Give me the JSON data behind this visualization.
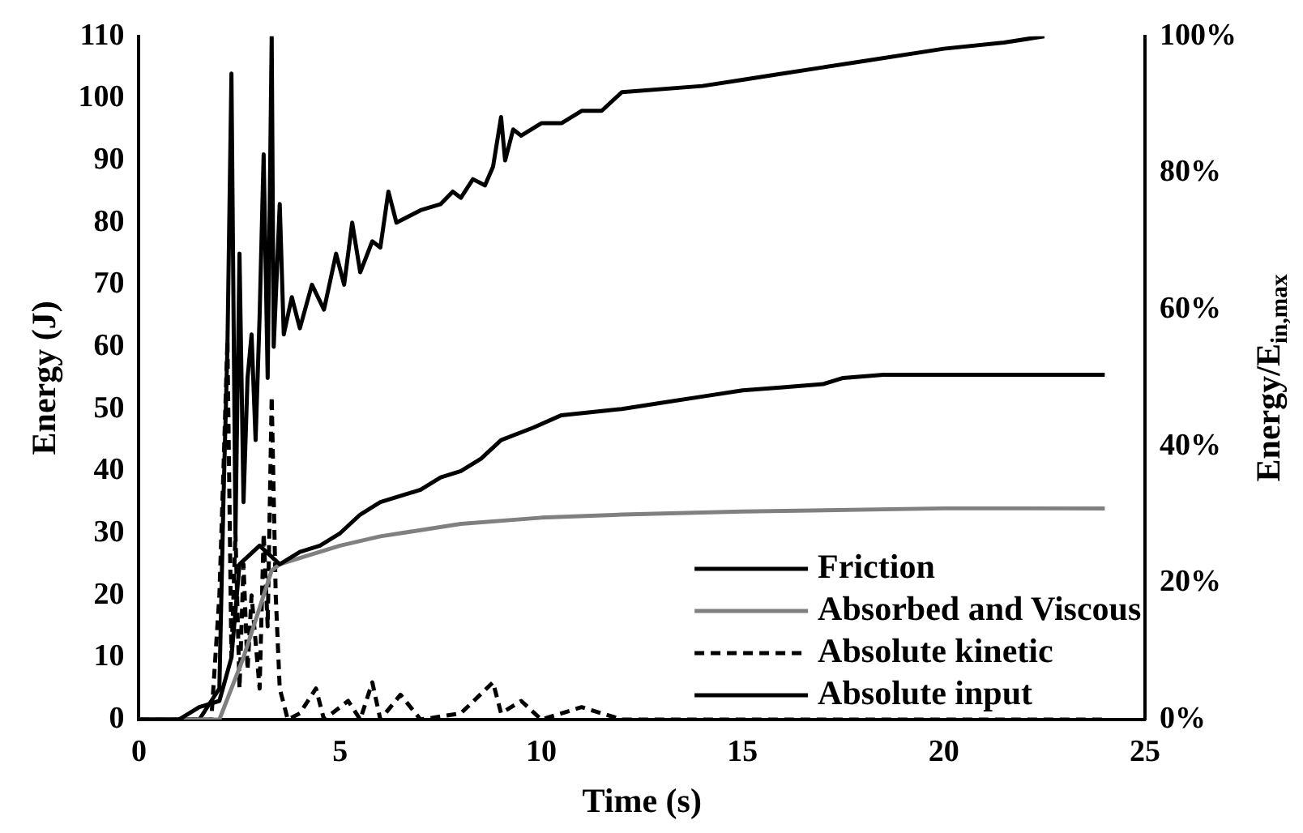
{
  "chart_data": {
    "type": "line",
    "xlabel": "Time (s)",
    "ylabel": "Energy (J)",
    "y2label": "Energy/E$_{in,max}$",
    "xlim": [
      0,
      25
    ],
    "xticks": [
      0,
      5,
      10,
      15,
      20,
      25
    ],
    "ylim": [
      0,
      110
    ],
    "yticks": [
      0,
      10,
      20,
      30,
      40,
      50,
      60,
      70,
      80,
      90,
      100,
      110
    ],
    "y2lim": [
      0,
      100
    ],
    "y2ticks": [
      {
        "value": 0,
        "label": "0%"
      },
      {
        "value": 20,
        "label": "20%"
      },
      {
        "value": 40,
        "label": "40%"
      },
      {
        "value": 60,
        "label": "60%"
      },
      {
        "value": 80,
        "label": "80%"
      },
      {
        "value": 100,
        "label": "100%"
      }
    ],
    "grid": false,
    "legend": "bottom right",
    "marker": "none",
    "series": [
      {
        "name": "Friction",
        "color": "#000000",
        "line_style": "solid",
        "x": [
          0,
          1,
          1.5,
          2,
          2.3,
          2.5,
          3,
          3.5,
          4,
          4.5,
          5,
          5.5,
          6,
          7,
          7.5,
          8,
          8.5,
          9,
          9.8,
          10.5,
          12,
          13,
          14,
          15,
          16,
          17,
          17.5,
          18.5,
          20,
          22,
          24
        ],
        "values": [
          0,
          0,
          2,
          3,
          10,
          25,
          28,
          25,
          27,
          28,
          30,
          33,
          35,
          37,
          39,
          40,
          42,
          45,
          47,
          49,
          50,
          51,
          52,
          53,
          53.5,
          54,
          55,
          55.5,
          55.5,
          55.5,
          55.5
        ]
      },
      {
        "name": "Absorbed and Viscous",
        "color": "#808080",
        "line_style": "solid",
        "x": [
          0,
          2,
          2.3,
          2.6,
          3,
          3.3,
          3.5,
          4,
          5,
          6,
          7,
          8,
          10,
          12,
          15,
          20,
          24
        ],
        "values": [
          0,
          0,
          5,
          10,
          18,
          24,
          25,
          26,
          28,
          29.5,
          30.5,
          31.5,
          32.5,
          33,
          33.5,
          34,
          34
        ]
      },
      {
        "name": "Absolute kinetic",
        "color": "#000000",
        "line_style": "dashed",
        "x": [
          0,
          1.8,
          2,
          2.1,
          2.2,
          2.3,
          2.4,
          2.5,
          2.6,
          2.7,
          2.8,
          3,
          3.1,
          3.2,
          3.3,
          3.4,
          3.5,
          3.7,
          4,
          4.4,
          4.6,
          5.2,
          5.5,
          5.8,
          6,
          6.5,
          7,
          8,
          8.8,
          9,
          9.5,
          10,
          11,
          12,
          24
        ],
        "values": [
          0,
          0,
          20,
          40,
          61,
          10,
          30,
          5,
          25,
          8,
          20,
          5,
          30,
          15,
          52,
          20,
          5,
          0,
          1,
          5,
          0,
          3,
          0,
          6,
          0,
          4,
          0,
          1,
          6,
          1,
          3,
          0,
          2,
          0,
          0
        ]
      },
      {
        "name": "Absolute input",
        "color": "#000000",
        "line_style": "solid",
        "x": [
          0,
          1.5,
          1.8,
          2,
          2.1,
          2.2,
          2.3,
          2.4,
          2.5,
          2.6,
          2.7,
          2.8,
          2.9,
          3,
          3.1,
          3.2,
          3.3,
          3.35,
          3.5,
          3.6,
          3.8,
          4,
          4.3,
          4.6,
          4.9,
          5.1,
          5.3,
          5.5,
          5.8,
          6,
          6.2,
          6.4,
          7,
          7.5,
          7.8,
          8,
          8.3,
          8.6,
          8.8,
          9,
          9.1,
          9.3,
          9.5,
          10,
          10.5,
          11,
          11.5,
          12,
          14,
          15,
          16,
          17,
          18,
          20,
          21.5,
          22.5
        ],
        "values": [
          0,
          0,
          3,
          5,
          35,
          60,
          104,
          30,
          75,
          35,
          55,
          62,
          45,
          65,
          91,
          55,
          110,
          60,
          83,
          62,
          68,
          63,
          70,
          66,
          75,
          70,
          80,
          72,
          77,
          76,
          85,
          80,
          82,
          83,
          85,
          84,
          87,
          86,
          89,
          97,
          90,
          95,
          94,
          96,
          96,
          98,
          98,
          101,
          102,
          103,
          104,
          105,
          106,
          108,
          109,
          110
        ]
      }
    ]
  }
}
